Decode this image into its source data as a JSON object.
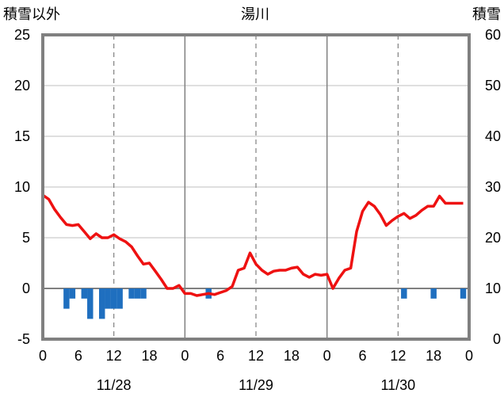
{
  "chart_data": {
    "type": "bar+line",
    "title": "湯川",
    "left_axis_label": "積雪以外",
    "right_axis_label": "積雪",
    "y_left": {
      "min": -5,
      "max": 25,
      "ticks": [
        -5,
        0,
        5,
        10,
        15,
        20,
        25
      ]
    },
    "y_right": {
      "min": 0,
      "max": 60,
      "ticks": [
        0,
        10,
        20,
        30,
        40,
        50,
        60
      ]
    },
    "x": {
      "min": 0,
      "max": 72,
      "unit": "hours",
      "tick_labels": [
        "0",
        "6",
        "12",
        "18",
        "0",
        "6",
        "12",
        "18",
        "0",
        "6",
        "12",
        "18",
        "0"
      ],
      "day_boundaries": [
        0,
        24,
        48,
        72
      ],
      "dashed_lines": [
        12,
        36,
        60
      ],
      "dates": [
        "11/28",
        "11/29",
        "11/30"
      ]
    },
    "grid": true,
    "series": [
      {
        "kind": "bar",
        "color": "#1f6fbf",
        "axis": "left",
        "x": [
          4,
          5,
          7,
          8,
          10,
          11,
          12,
          13,
          15,
          16,
          17,
          28,
          61,
          66,
          71
        ],
        "values": [
          -2,
          -1,
          -1,
          -3,
          -3,
          -2,
          -2,
          -2,
          -1,
          -1,
          -1,
          -1,
          -1,
          -1,
          -1
        ]
      },
      {
        "kind": "line",
        "color": "#ee1111",
        "axis": "left",
        "x": [
          0,
          1,
          2,
          3,
          4,
          5,
          6,
          7,
          8,
          9,
          10,
          11,
          12,
          13,
          14,
          15,
          16,
          17,
          18,
          19,
          20,
          21,
          22,
          23,
          24,
          25,
          26,
          27,
          28,
          29,
          30,
          31,
          32,
          33,
          34,
          35,
          36,
          37,
          38,
          39,
          40,
          41,
          42,
          43,
          44,
          45,
          46,
          47,
          48,
          49,
          50,
          51,
          52,
          53,
          54,
          55,
          56,
          57,
          58,
          59,
          60,
          61,
          62,
          63,
          64,
          65,
          66,
          67,
          68,
          69,
          70,
          71
        ],
        "values": [
          9.2,
          8.8,
          7.8,
          7.0,
          6.3,
          6.2,
          6.3,
          5.6,
          4.9,
          5.4,
          5.0,
          5.0,
          5.3,
          4.9,
          4.6,
          4.1,
          3.2,
          2.4,
          2.5,
          1.7,
          0.9,
          0.0,
          0.0,
          0.3,
          -0.5,
          -0.5,
          -0.7,
          -0.6,
          -0.5,
          -0.6,
          -0.4,
          -0.2,
          0.2,
          1.8,
          2.0,
          3.5,
          2.4,
          1.8,
          1.4,
          1.7,
          1.8,
          1.8,
          2.0,
          2.1,
          1.4,
          1.1,
          1.4,
          1.3,
          1.4,
          0.0,
          1.0,
          1.8,
          2.0,
          5.6,
          7.6,
          8.5,
          8.1,
          7.3,
          6.2,
          6.7,
          7.1,
          7.4,
          6.9,
          7.2,
          7.7,
          8.1,
          8.1,
          9.1,
          8.4,
          8.4,
          8.4,
          8.4
        ]
      },
      {
        "kind": "line",
        "color": "#6a3fa0",
        "axis": "right",
        "x": [
          0,
          72
        ],
        "values": [
          0,
          0
        ]
      }
    ]
  }
}
